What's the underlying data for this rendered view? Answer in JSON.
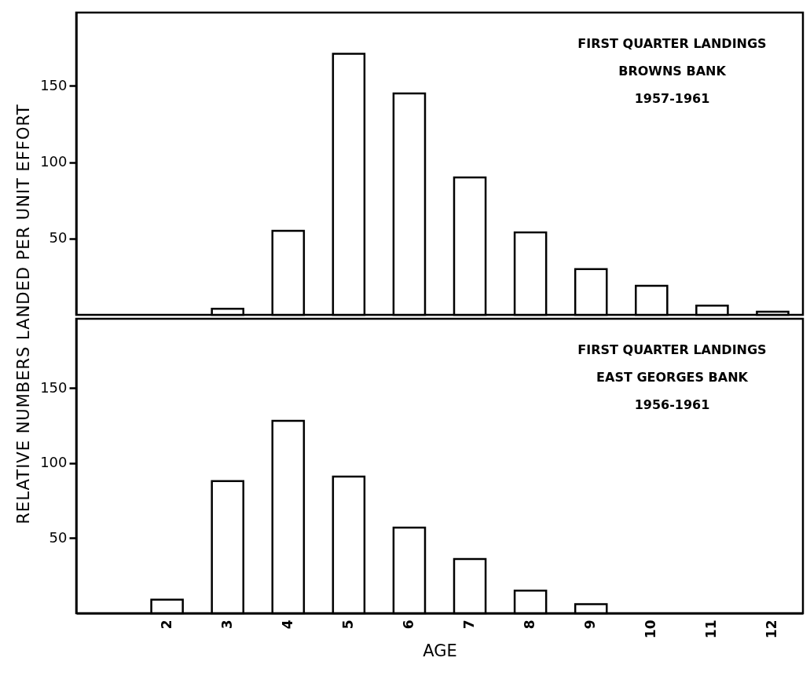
{
  "chart_data": [
    {
      "type": "bar",
      "ylabel": "RELATIVE NUMBERS LANDED PER UNIT EFFORT",
      "categories": [
        null,
        "2",
        "3",
        "4",
        "5",
        "6",
        "7",
        "8",
        "9",
        "10",
        "11",
        "12"
      ],
      "values": [
        null,
        null,
        4,
        55,
        171,
        145,
        90,
        54,
        30,
        19,
        6,
        2
      ],
      "color": "#ffffff",
      "ylim": [
        0,
        198
      ],
      "yticks": [
        50,
        100,
        150
      ],
      "tick_labels": "y",
      "annotations": [
        "FIRST QUARTER LANDINGS",
        "BROWNS BANK",
        "1957-1961"
      ]
    },
    {
      "type": "bar",
      "xlabel": "AGE",
      "categories": [
        null,
        "2",
        "3",
        "4",
        "5",
        "6",
        "7",
        "8",
        "9",
        "10",
        "11",
        "12"
      ],
      "values": [
        null,
        9,
        88,
        128,
        91,
        57,
        36,
        15,
        6,
        null,
        null,
        null
      ],
      "color": "#ffffff",
      "ylim": [
        0,
        196
      ],
      "yticks": [
        50,
        100,
        150
      ],
      "annotations": [
        "FIRST QUARTER LANDINGS",
        "EAST GEORGES BANK",
        "1956-1961"
      ]
    }
  ]
}
